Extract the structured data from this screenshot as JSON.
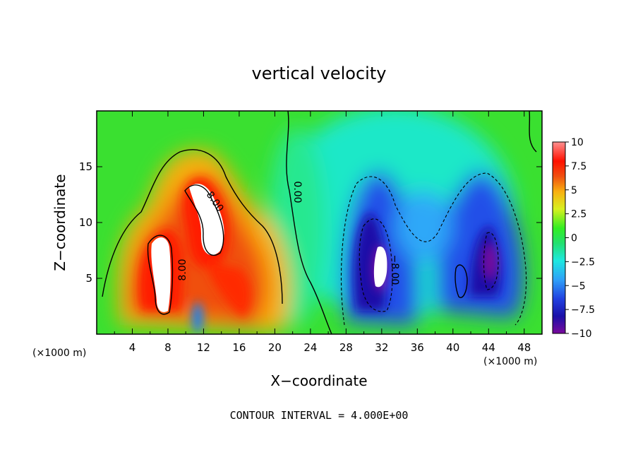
{
  "chart_data": {
    "type": "heatmap",
    "title": "vertical velocity",
    "xlabel": "X−coordinate",
    "ylabel": "Z−coordinate",
    "x_unit": "(×1000 m)",
    "y_unit": "(×1000 m)",
    "xlim": [
      0,
      50
    ],
    "ylim": [
      0,
      20
    ],
    "x_ticks": [
      "4",
      "8",
      "12",
      "16",
      "20",
      "24",
      "28",
      "32",
      "36",
      "40",
      "44",
      "48"
    ],
    "y_ticks": [
      "5",
      "10",
      "15"
    ],
    "colorbar": {
      "min": -10,
      "max": 10,
      "tick_labels": [
        "10",
        "7.5",
        "5",
        "2.5",
        "0",
        "−2.5",
        "−5",
        "−7.5",
        "−10"
      ],
      "colors": [
        "#7a0a9c",
        "#1a10a8",
        "#2140e0",
        "#2fa0f8",
        "#1ee8e0",
        "#22e070",
        "#33ee22",
        "#d8f020",
        "#f8b010",
        "#f05010",
        "#ff1000",
        "#ff9090"
      ]
    },
    "contour_labels": [
      "0.00",
      "8.00",
      "8.00",
      "−8.00"
    ],
    "contour_interval_text": "CONTOUR INTERVAL = 4.000E+00",
    "features": [
      {
        "kind": "updraft",
        "x": 10,
        "z": 10,
        "w_max": 10
      },
      {
        "kind": "updraft",
        "x": 13,
        "z": 11,
        "w_max": 10
      },
      {
        "kind": "downdraft",
        "x": 32,
        "z": 6,
        "w_min": -10
      },
      {
        "kind": "downdraft",
        "x": 44,
        "z": 6,
        "w_min": -9
      }
    ]
  }
}
